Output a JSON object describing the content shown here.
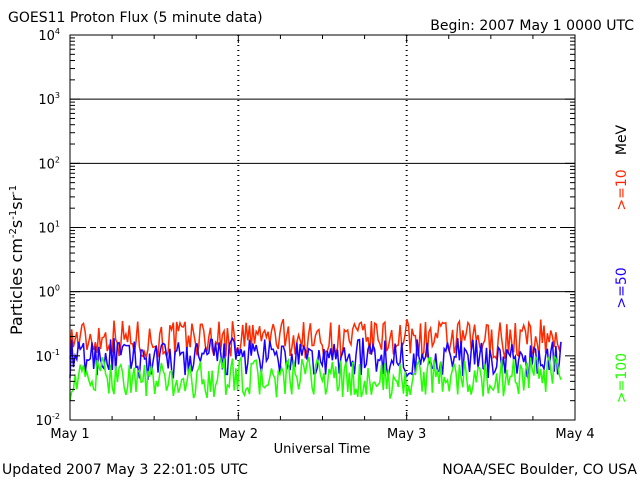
{
  "header": {
    "title": "GOES11 Proton Flux (5 minute data)",
    "begin": "Begin: 2007 May 1 0000 UTC"
  },
  "footer": {
    "updated": "Updated 2007 May  3 22:01:05 UTC",
    "credit": "NOAA/SEC Boulder, CO USA"
  },
  "colors": {
    "ge10": "#ff2a00",
    "ge50": "#1a00ff",
    "ge100": "#22ff00",
    "axis": "#000000"
  },
  "chart_data": {
    "type": "line",
    "title": "GOES11 Proton Flux (5 minute data)",
    "xlabel": "Universal Time",
    "ylabel": "Particles cm-2s-1sr-1",
    "yscale": "log",
    "ylim": [
      0.01,
      10000
    ],
    "y_ticks": [
      {
        "base": "10",
        "exp": "-2",
        "value": 0.01
      },
      {
        "base": "10",
        "exp": "-1",
        "value": 0.1
      },
      {
        "base": "10",
        "exp": "0",
        "value": 1
      },
      {
        "base": "10",
        "exp": "1",
        "value": 10
      },
      {
        "base": "10",
        "exp": "2",
        "value": 100
      },
      {
        "base": "10",
        "exp": "3",
        "value": 1000
      },
      {
        "base": "10",
        "exp": "4",
        "value": 10000
      }
    ],
    "x_ticks": [
      "May 1",
      "May 2",
      "May 3",
      "May 4"
    ],
    "x": [
      "2007-05-01 00:00",
      "2007-05-01 06:00",
      "2007-05-01 12:00",
      "2007-05-01 18:00",
      "2007-05-02 00:00",
      "2007-05-02 06:00",
      "2007-05-02 12:00",
      "2007-05-02 18:00",
      "2007-05-03 00:00",
      "2007-05-03 06:00",
      "2007-05-03 12:00",
      "2007-05-03 18:00",
      "2007-05-03 22:00"
    ],
    "reference_lines": [
      {
        "value": 10,
        "style": "dashed"
      },
      {
        "value": 1,
        "style": "solid"
      },
      {
        "value": 100,
        "style": "solid"
      },
      {
        "value": 1000,
        "style": "solid"
      }
    ],
    "legend_unit": "MeV",
    "series": [
      {
        "name": ">=10",
        "color": "#ff2a00",
        "values": [
          0.18,
          0.2,
          0.17,
          0.19,
          0.18,
          0.2,
          0.17,
          0.18,
          0.19,
          0.18,
          0.17,
          0.18,
          0.2
        ]
      },
      {
        "name": ">=50",
        "color": "#1a00ff",
        "values": [
          0.09,
          0.1,
          0.08,
          0.09,
          0.1,
          0.09,
          0.08,
          0.1,
          0.09,
          0.1,
          0.09,
          0.08,
          0.1
        ]
      },
      {
        "name": ">=100",
        "color": "#22ff00",
        "values": [
          0.04,
          0.05,
          0.04,
          0.04,
          0.05,
          0.04,
          0.05,
          0.04,
          0.04,
          0.05,
          0.04,
          0.05,
          0.05
        ]
      }
    ]
  }
}
